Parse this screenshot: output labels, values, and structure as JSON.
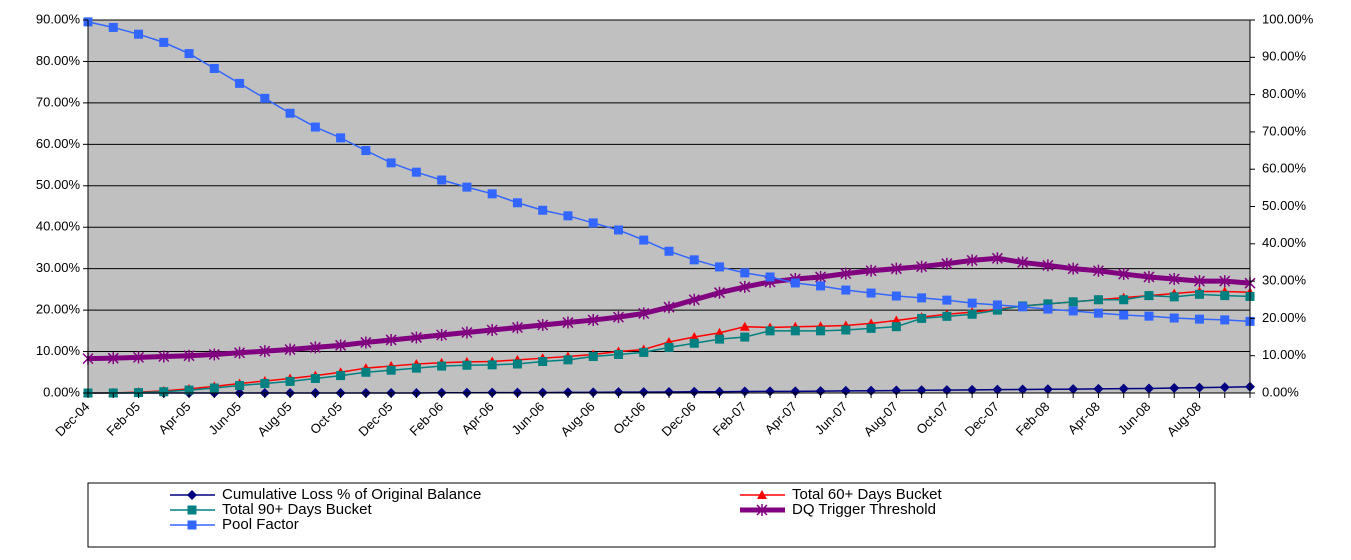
{
  "chart_data": {
    "type": "line",
    "categories": [
      "Dec-04",
      null,
      "Feb-05",
      null,
      "Apr-05",
      null,
      "Jun-05",
      null,
      "Aug-05",
      null,
      "Oct-05",
      null,
      "Dec-05",
      null,
      "Feb-06",
      null,
      "Apr-06",
      null,
      "Jun-06",
      null,
      "Aug-06",
      null,
      "Oct-06",
      null,
      "Dec-06",
      null,
      "Feb-07",
      null,
      "Apr-07",
      null,
      "Jun-07",
      null,
      "Aug-07",
      null,
      "Oct-07",
      null,
      "Dec-07",
      null,
      "Feb-08",
      null,
      "Apr-08",
      null,
      "Jun-08",
      null,
      "Aug-08",
      null,
      null
    ],
    "ylim": [
      0,
      90
    ],
    "yticks": [
      {
        "value": 0,
        "label": "0.00%"
      },
      {
        "value": 10,
        "label": "10.00%"
      },
      {
        "value": 20,
        "label": "20.00%"
      },
      {
        "value": 30,
        "label": "30.00%"
      },
      {
        "value": 40,
        "label": "40.00%"
      },
      {
        "value": 50,
        "label": "50.00%"
      },
      {
        "value": 60,
        "label": "60.00%"
      },
      {
        "value": 70,
        "label": "70.00%"
      },
      {
        "value": 80,
        "label": "80.00%"
      },
      {
        "value": 90,
        "label": "90.00%"
      }
    ],
    "y2lim": [
      0,
      100
    ],
    "y2ticks": [
      {
        "value": 0,
        "label": "0.00%"
      },
      {
        "value": 10,
        "label": "10.00%"
      },
      {
        "value": 20,
        "label": "20.00%"
      },
      {
        "value": 30,
        "label": "30.00%"
      },
      {
        "value": 40,
        "label": "40.00%"
      },
      {
        "value": 50,
        "label": "50.00%"
      },
      {
        "value": 60,
        "label": "60.00%"
      },
      {
        "value": 70,
        "label": "70.00%"
      },
      {
        "value": 80,
        "label": "80.00%"
      },
      {
        "value": 90,
        "label": "90.00%"
      },
      {
        "value": 100,
        "label": "100.00%"
      }
    ],
    "grid": true,
    "series": [
      {
        "name": "Cumulative Loss % of Original Balance",
        "color": "#000080",
        "marker": "diamond",
        "values": [
          0,
          0,
          0,
          0,
          0,
          0,
          0,
          0,
          0,
          0,
          0,
          0,
          0,
          0,
          0.05,
          0.05,
          0.1,
          0.1,
          0.1,
          0.15,
          0.15,
          0.2,
          0.2,
          0.25,
          0.3,
          0.3,
          0.35,
          0.4,
          0.4,
          0.45,
          0.5,
          0.55,
          0.6,
          0.65,
          0.7,
          0.75,
          0.8,
          0.85,
          0.9,
          0.95,
          1.0,
          1.05,
          1.1,
          1.2,
          1.3,
          1.4,
          1.5
        ]
      },
      {
        "name": "Total 60+ Days Bucket",
        "color": "#ff0000",
        "marker": "triangle",
        "values": [
          0,
          0,
          0.2,
          0.5,
          1.0,
          1.6,
          2.3,
          2.9,
          3.5,
          4.2,
          5.0,
          6.0,
          6.5,
          7.0,
          7.3,
          7.5,
          7.6,
          8.0,
          8.4,
          8.8,
          9.3,
          10.0,
          10.5,
          12.3,
          13.5,
          14.5,
          16.0,
          15.8,
          16.0,
          16.1,
          16.3,
          16.8,
          17.5,
          18.3,
          19.0,
          19.5,
          20.2,
          21.0,
          21.5,
          22.0,
          22.5,
          23.0,
          23.5,
          24.0,
          24.5,
          24.5,
          24.3
        ]
      },
      {
        "name": "Total 90+ Days Bucket",
        "color": "#008080",
        "marker": "square",
        "values": [
          0,
          0,
          0.1,
          0.3,
          0.7,
          1.2,
          1.8,
          2.3,
          2.8,
          3.5,
          4.2,
          5.0,
          5.5,
          6.0,
          6.5,
          6.7,
          6.8,
          7.0,
          7.6,
          8.0,
          8.8,
          9.3,
          9.8,
          11.0,
          12.0,
          13.0,
          13.5,
          15.0,
          15.0,
          15.0,
          15.2,
          15.6,
          16.0,
          18.0,
          18.5,
          19.0,
          20.0,
          21.0,
          21.5,
          22.0,
          22.5,
          22.5,
          23.5,
          23.2,
          23.8,
          23.5,
          23.3
        ]
      },
      {
        "name": "DQ Trigger Threshold",
        "color": "#800080",
        "marker": "star",
        "width": 5,
        "values": [
          8.3,
          8.4,
          8.6,
          8.8,
          9.0,
          9.3,
          9.7,
          10.1,
          10.5,
          11.0,
          11.5,
          12.2,
          12.8,
          13.4,
          14.0,
          14.6,
          15.2,
          15.8,
          16.4,
          17.0,
          17.6,
          18.3,
          19.2,
          20.7,
          22.5,
          24.2,
          25.6,
          26.8,
          27.5,
          28.0,
          28.8,
          29.5,
          30.0,
          30.5,
          31.2,
          32.0,
          32.5,
          31.5,
          30.8,
          30.0,
          29.5,
          28.7,
          28.0,
          27.5,
          27.0,
          27.0,
          26.5
        ]
      },
      {
        "name": "Pool Factor",
        "color": "#3366ff",
        "marker": "square",
        "axis": "y2",
        "values": [
          99.5,
          98,
          96.2,
          94,
          91,
          87,
          83,
          79,
          75,
          71.3,
          68.4,
          65,
          61.7,
          59.2,
          57.1,
          55.2,
          53.4,
          51,
          49,
          47.5,
          45.6,
          43.7,
          41,
          38,
          35.7,
          33.8,
          32.2,
          31.1,
          29.5,
          28.7,
          27.6,
          26.8,
          26,
          25.5,
          24.9,
          24.1,
          23.6,
          23.1,
          22.5,
          22,
          21.4,
          20.9,
          20.6,
          20.1,
          19.8,
          19.6,
          19.2
        ]
      }
    ]
  }
}
